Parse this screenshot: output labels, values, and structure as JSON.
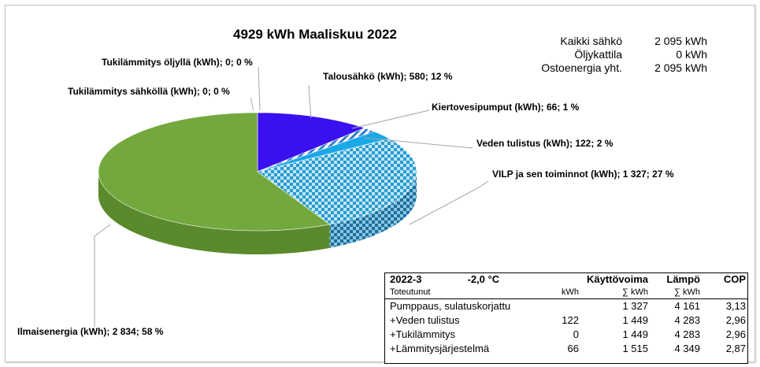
{
  "chart_data": {
    "type": "pie",
    "title": "4929  kWh Maaliskuu 2022",
    "slices": [
      {
        "name": "Talousähkö",
        "value": 580,
        "percent": 12,
        "label": "Talousähkö (kWh); 580; 12 %",
        "color": "#3a10f0"
      },
      {
        "name": "Kiertovesipumput",
        "value": 66,
        "percent": 1,
        "label": "Kiertovesipumput (kWh); 66; 1 %",
        "color": "#ffffff"
      },
      {
        "name": "Veden tulistus",
        "value": 122,
        "percent": 2,
        "label": "Veden tulistus (kWh); 122; 2 %",
        "color": "#19a8e8"
      },
      {
        "name": "VILP ja sen toiminnot",
        "value": 1327,
        "percent": 27,
        "label": "VILP ja sen toiminnot (kWh); 1 327; 27 %",
        "color": "#3aa6d8"
      },
      {
        "name": "Ilmaisenergia",
        "value": 2834,
        "percent": 58,
        "label": "Ilmaisenergia (kWh); 2 834; 58 %",
        "color": "#72a83e"
      },
      {
        "name": "Tukilämmitys sähköllä",
        "value": 0,
        "percent": 0,
        "label": "Tukilämmitys sähköllä (kWh); 0; 0 %",
        "color": "#999999"
      },
      {
        "name": "Tukilämmitys öljyllä",
        "value": 0,
        "percent": 0,
        "label": "Tukilämmitys öljyllä (kWh); 0; 0 %",
        "color": "#999999"
      }
    ]
  },
  "summary": [
    {
      "label": "Kaikki sähkö",
      "value": "2 095 kWh"
    },
    {
      "label": "Öljykattila",
      "value": "0 kWh"
    },
    {
      "label": "Ostoenergia yht.",
      "value": "2 095 kWh"
    }
  ],
  "table": {
    "period": "2022-3",
    "temperature": "-2,0 °C",
    "col_power": "Käyttövoima",
    "col_heat": "Lämpö",
    "col_cop": "COP",
    "sub_label": "Toteutunut",
    "sub_kwh": "kWh",
    "sub_sum_kwh": "∑ kWh",
    "sub_heat_sum": "∑ kWh",
    "rows": [
      {
        "name": "Pumppaus, sulatuskorjattu",
        "kwh": "",
        "sum_kwh": "1 327",
        "heat": "4 161",
        "cop": "3,13"
      },
      {
        "name": "+Veden tulistus",
        "kwh": "122",
        "sum_kwh": "1 449",
        "heat": "4 283",
        "cop": "2,96"
      },
      {
        "name": "+Tukilämmitys",
        "kwh": "0",
        "sum_kwh": "1 449",
        "heat": "4 283",
        "cop": "2,96"
      },
      {
        "name": "+Lämmitysjärjestelmä",
        "kwh": "66",
        "sum_kwh": "1 515",
        "heat": "4 349",
        "cop": "2,87"
      }
    ]
  }
}
